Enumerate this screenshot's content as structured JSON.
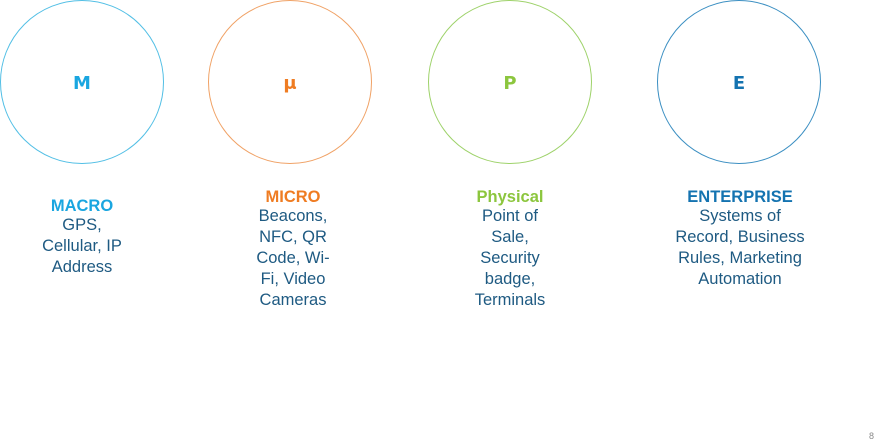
{
  "columns": [
    {
      "letter": "M",
      "heading": "MACRO",
      "description": "GPS, Cellular, IP Address",
      "color": "#1aa6e0",
      "circle_color": "#52bfe5"
    },
    {
      "letter": "μ",
      "heading": "MICRO",
      "description": "Beacons, NFC, QR Code, Wi-Fi, Video Cameras",
      "color": "#ef7c22",
      "circle_color": "#f0a266"
    },
    {
      "letter": "P",
      "heading": "Physical",
      "description": "Point of Sale, Security badge, Terminals",
      "color": "#8cc63e",
      "circle_color": "#9ed26a"
    },
    {
      "letter": "E",
      "heading": "ENTERPRISE",
      "description": "Systems of Record, Business Rules, Marketing Automation",
      "color": "#1473b0",
      "circle_color": "#3b8fc2"
    }
  ],
  "page_number": "8"
}
